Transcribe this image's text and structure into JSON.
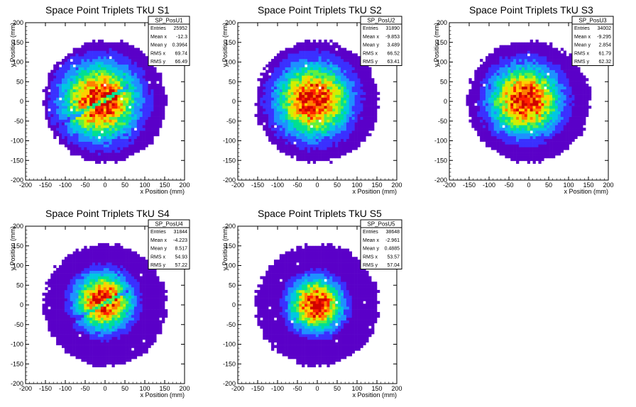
{
  "chart_data": [
    {
      "type": "heatmap",
      "title": "Space Point Triplets TkU S1",
      "xlabel": "x Position (mm)",
      "ylabel": "y Position (mm)",
      "xlim": [
        -200,
        200
      ],
      "ylim": [
        -200,
        200
      ],
      "xticks": [
        "-200",
        "-150",
        "-100",
        "-50",
        "0",
        "50",
        "100",
        "150",
        "200"
      ],
      "yticks": [
        "-200",
        "-150",
        "-100",
        "-50",
        "0",
        "50",
        "100",
        "150",
        "200"
      ],
      "stats": {
        "name": "SP_PosU1",
        "rows": [
          {
            "label": "Entries",
            "value": "25952"
          },
          {
            "label": "Mean x",
            "value": "-12.3"
          },
          {
            "label": "Mean y",
            "value": "0.3964"
          },
          {
            "label": "RMS x",
            "value": "69.74"
          },
          {
            "label": "RMS y",
            "value": "66.49"
          }
        ]
      },
      "distribution": {
        "radius": 155,
        "mean_x": -12.3,
        "mean_y": 0.4,
        "sigma": 60,
        "stripe": true
      }
    },
    {
      "type": "heatmap",
      "title": "Space Point Triplets TkU S2",
      "xlabel": "x Position (mm)",
      "ylabel": "y Position (mm)",
      "xlim": [
        -200,
        200
      ],
      "ylim": [
        -200,
        200
      ],
      "xticks": [
        "-200",
        "-150",
        "-100",
        "-50",
        "0",
        "50",
        "100",
        "150",
        "200"
      ],
      "yticks": [
        "-200",
        "-150",
        "-100",
        "-50",
        "0",
        "50",
        "100",
        "150",
        "200"
      ],
      "stats": {
        "name": "SP_PosU2",
        "rows": [
          {
            "label": "Entries",
            "value": "31890"
          },
          {
            "label": "Mean x",
            "value": "-9.853"
          },
          {
            "label": "Mean y",
            "value": "3.489"
          },
          {
            "label": "RMS x",
            "value": "66.52"
          },
          {
            "label": "RMS y",
            "value": "63.41"
          }
        ]
      },
      "distribution": {
        "radius": 155,
        "mean_x": -9.9,
        "mean_y": 3.5,
        "sigma": 58,
        "stripe": false
      }
    },
    {
      "type": "heatmap",
      "title": "Space Point Triplets TkU S3",
      "xlabel": "x Position (mm)",
      "ylabel": "y Position (mm)",
      "xlim": [
        -200,
        200
      ],
      "ylim": [
        -200,
        200
      ],
      "xticks": [
        "-200",
        "-150",
        "-100",
        "-50",
        "0",
        "50",
        "100",
        "150",
        "200"
      ],
      "yticks": [
        "-200",
        "-150",
        "-100",
        "-50",
        "0",
        "50",
        "100",
        "150",
        "200"
      ],
      "stats": {
        "name": "SP_PosU3",
        "rows": [
          {
            "label": "Entries",
            "value": "34002"
          },
          {
            "label": "Mean x",
            "value": "-9.295"
          },
          {
            "label": "Mean y",
            "value": "2.854"
          },
          {
            "label": "RMS x",
            "value": "61.79"
          },
          {
            "label": "RMS y",
            "value": "62.32"
          }
        ]
      },
      "distribution": {
        "radius": 155,
        "mean_x": -9.3,
        "mean_y": 2.9,
        "sigma": 55,
        "stripe": false
      }
    },
    {
      "type": "heatmap",
      "title": "Space Point Triplets TkU S4",
      "xlabel": "x Position (mm)",
      "ylabel": "y Position (mm)",
      "xlim": [
        -200,
        200
      ],
      "ylim": [
        -200,
        200
      ],
      "xticks": [
        "-200",
        "-150",
        "-100",
        "-50",
        "0",
        "50",
        "100",
        "150",
        "200"
      ],
      "yticks": [
        "-200",
        "-150",
        "-100",
        "-50",
        "0",
        "50",
        "100",
        "150",
        "200"
      ],
      "stats": {
        "name": "SP_PosU4",
        "rows": [
          {
            "label": "Entries",
            "value": "31844"
          },
          {
            "label": "Mean x",
            "value": "-4.223"
          },
          {
            "label": "Mean y",
            "value": "8.517"
          },
          {
            "label": "RMS x",
            "value": "54.93"
          },
          {
            "label": "RMS y",
            "value": "57.22"
          }
        ]
      },
      "distribution": {
        "radius": 155,
        "mean_x": -4.2,
        "mean_y": 8.5,
        "sigma": 45,
        "stripe": true
      }
    },
    {
      "type": "heatmap",
      "title": "Space Point Triplets TkU S5",
      "xlabel": "x Position (mm)",
      "ylabel": "y Position (mm)",
      "xlim": [
        -200,
        200
      ],
      "ylim": [
        -200,
        200
      ],
      "xticks": [
        "-200",
        "-150",
        "-100",
        "-50",
        "0",
        "50",
        "100",
        "150",
        "200"
      ],
      "yticks": [
        "-200",
        "-150",
        "-100",
        "-50",
        "0",
        "50",
        "100",
        "150",
        "200"
      ],
      "stats": {
        "name": "SP_PosU5",
        "rows": [
          {
            "label": "Entries",
            "value": "38648"
          },
          {
            "label": "Mean x",
            "value": "-2.961"
          },
          {
            "label": "Mean y",
            "value": "0.4885"
          },
          {
            "label": "RMS x",
            "value": "53.57"
          },
          {
            "label": "RMS y",
            "value": "57.04"
          }
        ]
      },
      "distribution": {
        "radius": 155,
        "mean_x": -3.0,
        "mean_y": 0.5,
        "sigma": 42,
        "stripe": false
      }
    }
  ],
  "colors": {
    "palette": [
      "#5a00c8",
      "#3a30ff",
      "#1e90ff",
      "#00c8e0",
      "#00e090",
      "#60f040",
      "#d0f000",
      "#ffd000",
      "#ff8000",
      "#ff2000",
      "#d00000"
    ]
  }
}
